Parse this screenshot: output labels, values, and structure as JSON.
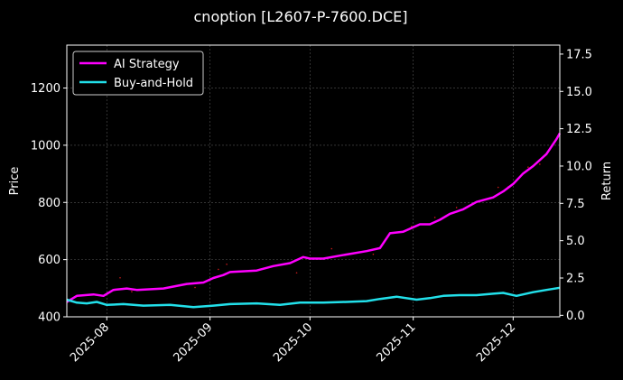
{
  "chart_data": {
    "type": "line",
    "title": "cnoption [L2607-P-7600.DCE]",
    "xlabel": "",
    "ylabel_left": "Price",
    "ylabel_right": "Return",
    "xlim": [
      "2025-07-20",
      "2025-12-15"
    ],
    "ylim_left": [
      400,
      1350
    ],
    "ylim_right": [
      -0.1,
      18.1
    ],
    "x_ticks": [
      "2025-08",
      "2025-09",
      "2025-10",
      "2025-11",
      "2025-12"
    ],
    "x_tick_dates": [
      "2025-08-01",
      "2025-09-01",
      "2025-10-01",
      "2025-11-01",
      "2025-12-01"
    ],
    "y_ticks_left": [
      "400",
      "600",
      "800",
      "1000",
      "1200"
    ],
    "y_ticks_right": [
      "0.0",
      "2.5",
      "5.0",
      "7.5",
      "10.0",
      "12.5",
      "15.0",
      "17.5"
    ],
    "grid": true,
    "legend_position": "top-left",
    "series": [
      {
        "name": "AI Strategy",
        "axis": "right",
        "color": "#ff00ff",
        "points": [
          [
            "2025-07-20",
            0.9
          ],
          [
            "2025-07-23",
            1.3
          ],
          [
            "2025-07-28",
            1.4
          ],
          [
            "2025-07-31",
            1.3
          ],
          [
            "2025-08-03",
            1.7
          ],
          [
            "2025-08-07",
            1.8
          ],
          [
            "2025-08-10",
            1.7
          ],
          [
            "2025-08-18",
            1.8
          ],
          [
            "2025-08-25",
            2.1
          ],
          [
            "2025-08-30",
            2.2
          ],
          [
            "2025-09-02",
            2.5
          ],
          [
            "2025-09-05",
            2.7
          ],
          [
            "2025-09-07",
            2.9
          ],
          [
            "2025-09-15",
            3.0
          ],
          [
            "2025-09-20",
            3.3
          ],
          [
            "2025-09-25",
            3.5
          ],
          [
            "2025-09-29",
            3.9
          ],
          [
            "2025-10-01",
            3.8
          ],
          [
            "2025-10-05",
            3.8
          ],
          [
            "2025-10-10",
            4.0
          ],
          [
            "2025-10-18",
            4.3
          ],
          [
            "2025-10-22",
            4.5
          ],
          [
            "2025-10-25",
            5.5
          ],
          [
            "2025-10-29",
            5.6
          ],
          [
            "2025-11-03",
            6.1
          ],
          [
            "2025-11-06",
            6.1
          ],
          [
            "2025-11-09",
            6.4
          ],
          [
            "2025-11-12",
            6.8
          ],
          [
            "2025-11-16",
            7.1
          ],
          [
            "2025-11-20",
            7.6
          ],
          [
            "2025-11-25",
            7.9
          ],
          [
            "2025-11-28",
            8.3
          ],
          [
            "2025-12-01",
            8.8
          ],
          [
            "2025-12-04",
            9.5
          ],
          [
            "2025-12-07",
            10.0
          ],
          [
            "2025-12-11",
            10.8
          ],
          [
            "2025-12-14",
            11.8
          ],
          [
            "2025-12-15",
            12.2
          ]
        ]
      },
      {
        "name": "Buy-and-Hold",
        "axis": "right",
        "color": "#22e0ea",
        "points": [
          [
            "2025-07-20",
            1.05
          ],
          [
            "2025-07-23",
            0.85
          ],
          [
            "2025-07-26",
            0.8
          ],
          [
            "2025-07-29",
            0.9
          ],
          [
            "2025-08-01",
            0.7
          ],
          [
            "2025-08-06",
            0.75
          ],
          [
            "2025-08-12",
            0.65
          ],
          [
            "2025-08-20",
            0.7
          ],
          [
            "2025-08-27",
            0.55
          ],
          [
            "2025-09-02",
            0.65
          ],
          [
            "2025-09-07",
            0.75
          ],
          [
            "2025-09-15",
            0.8
          ],
          [
            "2025-09-22",
            0.7
          ],
          [
            "2025-09-28",
            0.85
          ],
          [
            "2025-10-05",
            0.85
          ],
          [
            "2025-10-12",
            0.9
          ],
          [
            "2025-10-18",
            0.95
          ],
          [
            "2025-10-22",
            1.1
          ],
          [
            "2025-10-27",
            1.25
          ],
          [
            "2025-11-02",
            1.05
          ],
          [
            "2025-11-06",
            1.15
          ],
          [
            "2025-11-10",
            1.3
          ],
          [
            "2025-11-15",
            1.35
          ],
          [
            "2025-11-20",
            1.35
          ],
          [
            "2025-11-25",
            1.45
          ],
          [
            "2025-11-28",
            1.5
          ],
          [
            "2025-12-02",
            1.3
          ],
          [
            "2025-12-07",
            1.55
          ],
          [
            "2025-12-11",
            1.7
          ],
          [
            "2025-12-15",
            1.85
          ]
        ]
      }
    ],
    "colors": {
      "background": "#000000",
      "text": "#ffffff",
      "grid": "#555555",
      "scatter": "#ff2020"
    }
  }
}
